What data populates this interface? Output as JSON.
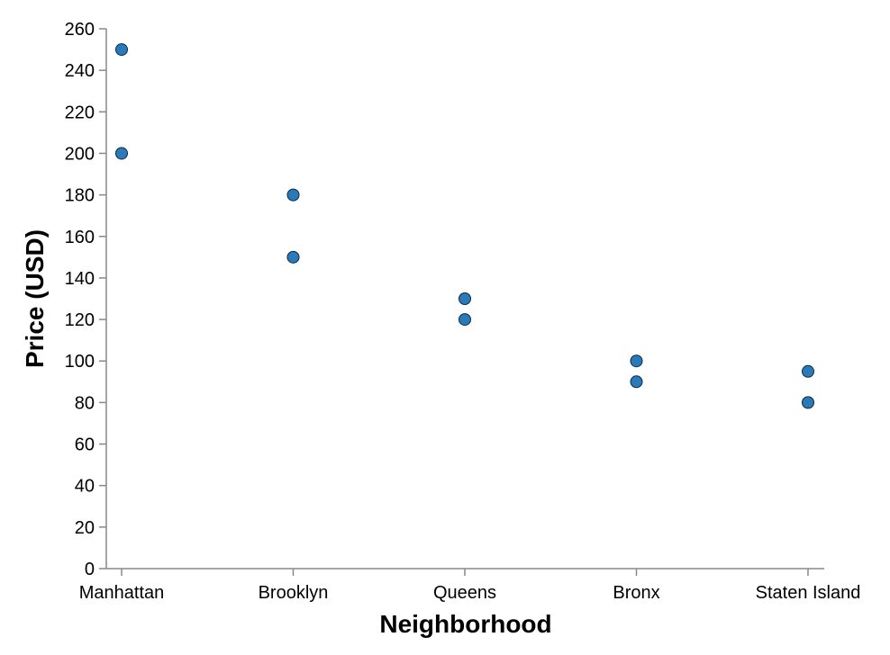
{
  "chart_data": {
    "type": "scatter",
    "title": "",
    "xlabel": "Neighborhood",
    "ylabel": "Price (USD)",
    "categories": [
      "Manhattan",
      "Brooklyn",
      "Queens",
      "Bronx",
      "Staten Island"
    ],
    "points": [
      {
        "x": "Manhattan",
        "y": 250
      },
      {
        "x": "Manhattan",
        "y": 200
      },
      {
        "x": "Brooklyn",
        "y": 180
      },
      {
        "x": "Brooklyn",
        "y": 150
      },
      {
        "x": "Queens",
        "y": 130
      },
      {
        "x": "Queens",
        "y": 120
      },
      {
        "x": "Bronx",
        "y": 100
      },
      {
        "x": "Bronx",
        "y": 90
      },
      {
        "x": "Staten Island",
        "y": 95
      },
      {
        "x": "Staten Island",
        "y": 80
      }
    ],
    "ylim": [
      0,
      260
    ],
    "yticks": [
      0,
      20,
      40,
      60,
      80,
      100,
      120,
      140,
      160,
      180,
      200,
      220,
      240,
      260
    ],
    "grid": false,
    "legend": "none",
    "point_color": "#2a7ab9"
  }
}
